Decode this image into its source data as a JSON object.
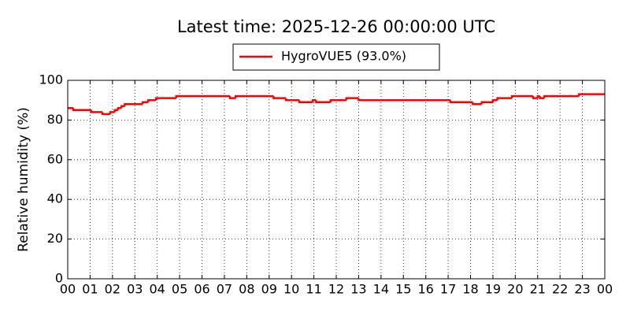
{
  "chart_data": {
    "type": "line",
    "drawstyle": "steps-post",
    "title": "Latest time: 2025-12-26 00:00:00 UTC",
    "y_label": "Relative humidity (%)",
    "x": [
      0,
      0.25,
      1.05,
      1.55,
      1.9,
      2.1,
      2.25,
      2.4,
      2.55,
      3.35,
      3.6,
      3.95,
      4.85,
      7.25,
      7.5,
      9.2,
      9.75,
      10.35,
      10.95,
      11.1,
      11.75,
      12.45,
      13.0,
      17.1,
      18.1,
      18.5,
      19.0,
      19.2,
      19.85,
      20.8,
      21.0,
      21.1,
      21.3,
      22.85,
      24
    ],
    "series": [
      {
        "name": "HygroVUE5 (93.0%)",
        "color": "#ff0000",
        "values": [
          86,
          85,
          84,
          83,
          84,
          85,
          86,
          87,
          88,
          89,
          90,
          91,
          92,
          91,
          92,
          91,
          90,
          89,
          90,
          89,
          90,
          91,
          90,
          89,
          88,
          89,
          90,
          91,
          92,
          91,
          92,
          91,
          92,
          93,
          93
        ]
      }
    ],
    "xlim": [
      0,
      24
    ],
    "xticks": [
      {
        "value": 0,
        "label": "00"
      },
      {
        "value": 1,
        "label": "01"
      },
      {
        "value": 2,
        "label": "02"
      },
      {
        "value": 3,
        "label": "03"
      },
      {
        "value": 4,
        "label": "04"
      },
      {
        "value": 5,
        "label": "05"
      },
      {
        "value": 6,
        "label": "06"
      },
      {
        "value": 7,
        "label": "07"
      },
      {
        "value": 8,
        "label": "08"
      },
      {
        "value": 9,
        "label": "09"
      },
      {
        "value": 10,
        "label": "10"
      },
      {
        "value": 11,
        "label": "11"
      },
      {
        "value": 12,
        "label": "12"
      },
      {
        "value": 13,
        "label": "13"
      },
      {
        "value": 14,
        "label": "14"
      },
      {
        "value": 15,
        "label": "15"
      },
      {
        "value": 16,
        "label": "16"
      },
      {
        "value": 17,
        "label": "17"
      },
      {
        "value": 18,
        "label": "18"
      },
      {
        "value": 19,
        "label": "19"
      },
      {
        "value": 20,
        "label": "20"
      },
      {
        "value": 21,
        "label": "21"
      },
      {
        "value": 22,
        "label": "22"
      },
      {
        "value": 23,
        "label": "23"
      },
      {
        "value": 24,
        "label": "00"
      }
    ],
    "ylim": [
      0,
      100
    ],
    "yticks": [
      0,
      20,
      40,
      60,
      80,
      100
    ],
    "grid": true,
    "legend": "top"
  }
}
